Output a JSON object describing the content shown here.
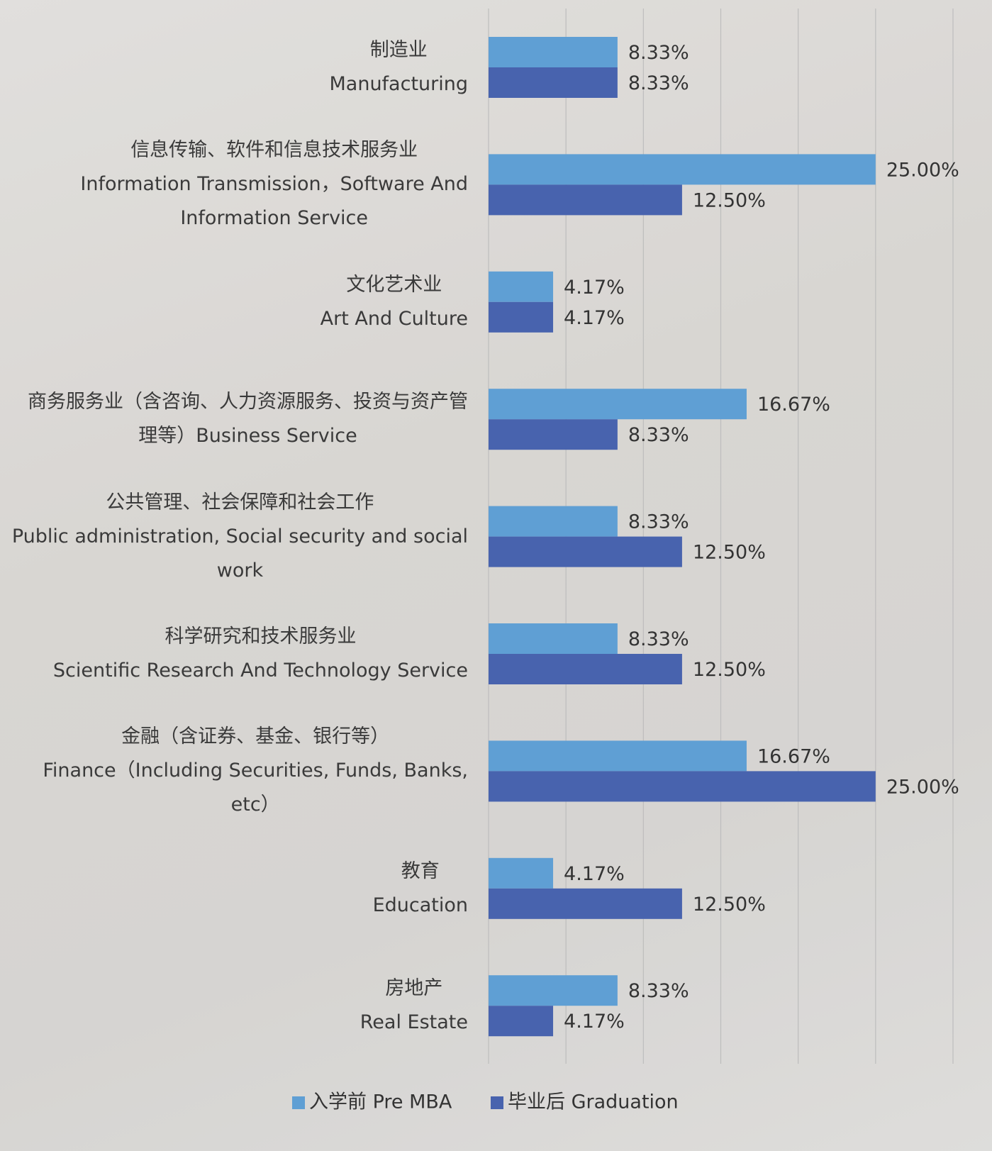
{
  "chart_data": {
    "type": "hbar",
    "categories": [
      "制造业\nManufacturing",
      "信息传输、软件和信息技术服务业\nInformation Transmission，Software And\nInformation Service",
      "文化艺术业\nArt And Culture",
      "商务服务业（含咨询、人力资源服务、投资与资产管\n理等）Business Service",
      "公共管理、社会保障和社会工作\nPublic administration, Social security and social\nwork",
      "科学研究和技术服务业\nScientific Research And Technology Service",
      "金融（含证券、基金、银行等）\nFinance（Including Securities, Funds, Banks,\netc）",
      "教育\nEducation",
      "房地产\nReal Estate"
    ],
    "series": [
      {
        "name": "入学前 Pre MBA",
        "color": "#5f9fd4",
        "values": [
          8.33,
          25.0,
          4.17,
          16.67,
          8.33,
          8.33,
          16.67,
          4.17,
          8.33
        ],
        "value_labels": [
          "8.33%",
          "25.00%",
          "4.17%",
          "16.67%",
          "8.33%",
          "8.33%",
          "16.67%",
          "4.17%",
          "8.33%"
        ]
      },
      {
        "name": "毕业后 Graduation",
        "color": "#4863ae",
        "values": [
          8.33,
          12.5,
          4.17,
          8.33,
          12.5,
          12.5,
          25.0,
          12.5,
          4.17
        ],
        "value_labels": [
          "8.33%",
          "12.50%",
          "4.17%",
          "8.33%",
          "12.50%",
          "12.50%",
          "25.00%",
          "12.50%",
          "4.17%"
        ]
      }
    ],
    "xlim": [
      0,
      30
    ],
    "xticks": [
      0,
      5,
      10,
      15,
      20,
      25,
      30
    ],
    "grid": true,
    "legend": "bottom"
  }
}
